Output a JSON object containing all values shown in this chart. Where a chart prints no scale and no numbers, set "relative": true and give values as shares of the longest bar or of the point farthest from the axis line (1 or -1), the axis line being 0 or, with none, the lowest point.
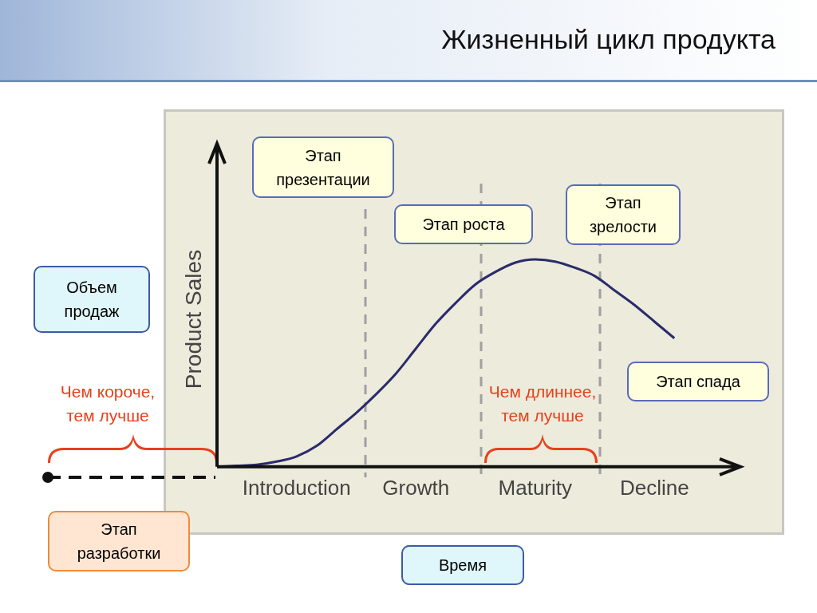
{
  "chart_data": {
    "type": "line",
    "title": "Жизненный цикл продукта",
    "ylabel": "Product Sales",
    "relative": true,
    "grid": false,
    "legend": false,
    "marker": "none",
    "categories": [
      null,
      null,
      null,
      null,
      "Introduction",
      null,
      null,
      null,
      null,
      null,
      "Growth",
      null,
      null,
      null,
      null,
      null,
      "Maturity",
      null,
      null,
      null,
      null,
      null,
      "Decline",
      null,
      null,
      null,
      null
    ],
    "series": [
      {
        "color": "#2b2b6b",
        "values": [
          0,
          0.005,
          0.01,
          0.025,
          0.05,
          0.1,
          0.18,
          0.26,
          0.35,
          0.45,
          0.57,
          0.69,
          0.79,
          0.88,
          0.94,
          0.985,
          1,
          0.99,
          0.96,
          0.92,
          0.85,
          0.78,
          0.7,
          0.62,
          null,
          null,
          null
        ]
      }
    ],
    "annotations": [
      "Этап презентации",
      "Этап роста",
      "Этап зрелости",
      "Этап спада",
      "Объем продаж",
      "Чем короче, тем лучше",
      "Чем длиннее, тем лучше",
      "Этап разработки",
      "Время"
    ]
  }
}
